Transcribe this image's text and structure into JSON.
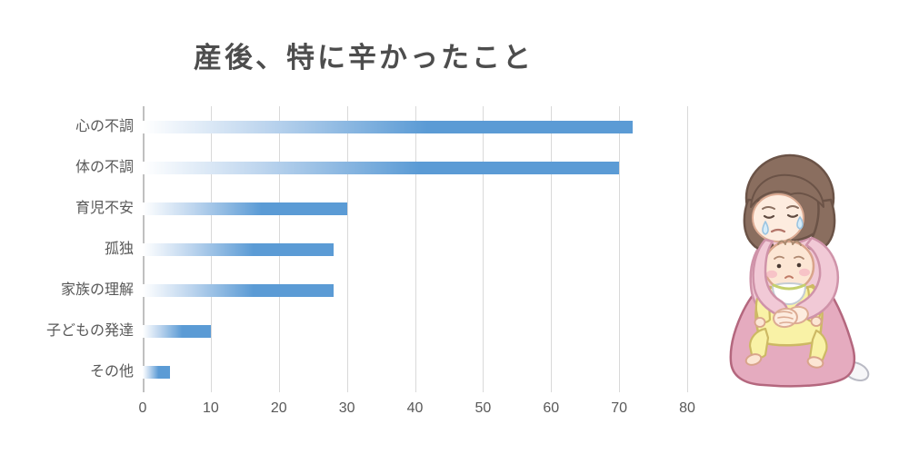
{
  "page": {
    "background_color": "#ffffff"
  },
  "chart_data": {
    "type": "bar",
    "orientation": "horizontal",
    "title": "産後、特に辛かったこと",
    "categories": [
      "心の不調",
      "体の不調",
      "育児不安",
      "孤独",
      "家族の理解",
      "子どもの発達",
      "その他"
    ],
    "values": [
      72,
      70,
      30,
      28,
      28,
      10,
      4
    ],
    "xlabel": "",
    "ylabel": "",
    "xlim": [
      0,
      80
    ],
    "xticks": [
      0,
      10,
      20,
      30,
      40,
      50,
      60,
      70,
      80
    ],
    "grid": "vertical gridlines on, no axis lines",
    "legend": "none",
    "bar_gradient_start": "#ffffff",
    "bar_gradient_end": "#5b9bd5",
    "gridline_color": "#d9d9d9",
    "label_color": "#595959",
    "title_color": "#4d4d4d"
  },
  "illustration": {
    "icon_name": "crying-mother-holding-baby-illustration",
    "colors": {
      "mother_hair": "#8a6e5f",
      "mother_skin": "#fdecdf",
      "robe_pink": "#f1c9d6",
      "skirt_pink": "#e5abbf",
      "baby_outfit_yellow": "#f9f2a6",
      "baby_skin": "#fce6d4",
      "bib_white": "#ffffff",
      "bib_trim_green": "#c5d06e",
      "tear_blue": "#d6ecf9",
      "cheek_pink": "#f6bcc4",
      "sock_white": "#f6f6f8"
    }
  }
}
